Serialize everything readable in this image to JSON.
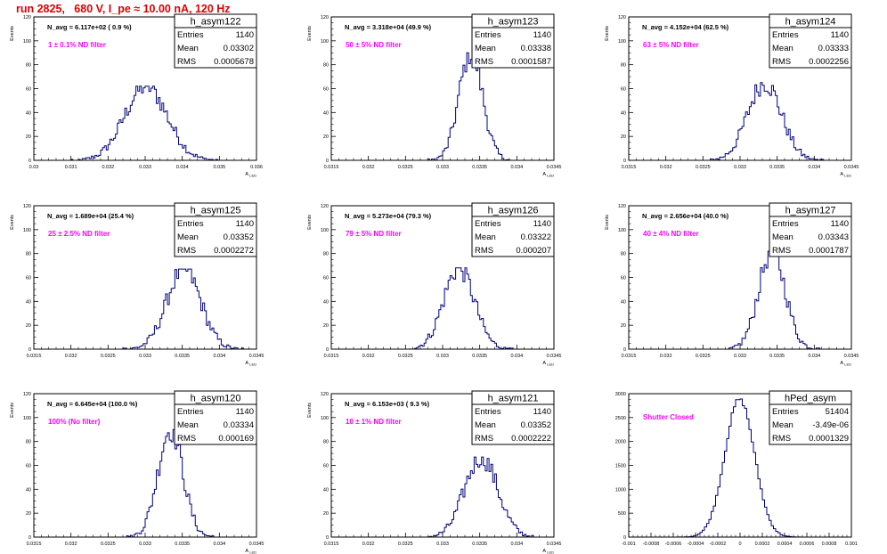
{
  "page_title": "run 2825,   680 V, I_pe ≈ 10.00 nA, 120 Hz",
  "colors": {
    "title": "#e00000",
    "histogram": "#000080",
    "annotation": "#ff00ff",
    "frame": "#000000"
  },
  "chart_data": [
    {
      "type": "histogram",
      "name": "h_asym122",
      "entries": "1140",
      "mean": "0.03302",
      "rms": "0.0005678",
      "navg": "N_avg = 6.117e+02 ( 0.9 %)",
      "note": "1 ± 0.1% ND filter",
      "xlabel": "A_LED",
      "ylabel": "Events",
      "xlim": [
        0.03,
        0.036
      ],
      "ylim": [
        0,
        120
      ],
      "xticks": [
        "0.03",
        "0.031",
        "0.032",
        "0.033",
        "0.034",
        "0.035",
        "0.036"
      ],
      "yticks": [
        "0",
        "20",
        "40",
        "60",
        "80",
        "100",
        "120"
      ],
      "mu": 0.03302,
      "sigma": 0.00057,
      "peak": 62,
      "binw": 5e-05
    },
    {
      "type": "histogram",
      "name": "h_asym123",
      "entries": "1140",
      "mean": "0.03338",
      "rms": "0.0001587",
      "navg": "N_avg = 3.318e+04 (49.9 %)",
      "note": "50 ± 5% ND filter",
      "xlabel": "A_LED",
      "ylabel": "Events",
      "xlim": [
        0.0315,
        0.0345
      ],
      "ylim": [
        0,
        120
      ],
      "xticks": [
        "0.0315",
        "0.032",
        "0.0325",
        "0.033",
        "0.0335",
        "0.034",
        "0.0345"
      ],
      "yticks": [
        "0",
        "20",
        "40",
        "60",
        "80",
        "100",
        "120"
      ],
      "mu": 0.03338,
      "sigma": 0.000159,
      "peak": 90,
      "binw": 2.5e-05
    },
    {
      "type": "histogram",
      "name": "h_asym124",
      "entries": "1140",
      "mean": "0.03333",
      "rms": "0.0002256",
      "navg": "N_avg = 4.152e+04 (62.5 %)",
      "note": "63 ± 5% ND filter",
      "xlabel": "A_LED",
      "ylabel": "Events",
      "xlim": [
        0.0315,
        0.0345
      ],
      "ylim": [
        0,
        120
      ],
      "xticks": [
        "0.0315",
        "0.032",
        "0.0325",
        "0.033",
        "0.0335",
        "0.034",
        "0.0345"
      ],
      "yticks": [
        "0",
        "20",
        "40",
        "60",
        "80",
        "100",
        "120"
      ],
      "mu": 0.03333,
      "sigma": 0.000226,
      "peak": 65,
      "binw": 2.5e-05
    },
    {
      "type": "histogram",
      "name": "h_asym125",
      "entries": "1140",
      "mean": "0.03352",
      "rms": "0.0002272",
      "navg": "N_avg = 1.689e+04 (25.4 %)",
      "note": "25 ± 2.5% ND filter",
      "xlabel": "A_LED",
      "ylabel": "Events",
      "xlim": [
        0.0315,
        0.0345
      ],
      "ylim": [
        0,
        120
      ],
      "xticks": [
        "0.0315",
        "0.032",
        "0.0325",
        "0.033",
        "0.0335",
        "0.034",
        "0.0345"
      ],
      "yticks": [
        "0",
        "20",
        "40",
        "60",
        "80",
        "100",
        "120"
      ],
      "mu": 0.03352,
      "sigma": 0.000227,
      "peak": 67,
      "binw": 2.5e-05
    },
    {
      "type": "histogram",
      "name": "h_asym126",
      "entries": "1140",
      "mean": "0.03322",
      "rms": "0.000207",
      "navg": "N_avg = 5.273e+04 (79.3 %)",
      "note": "79 ± 5% ND filter",
      "xlabel": "A_LED",
      "ylabel": "Events",
      "xlim": [
        0.0315,
        0.0345
      ],
      "ylim": [
        0,
        120
      ],
      "xticks": [
        "0.0315",
        "0.032",
        "0.0325",
        "0.033",
        "0.0335",
        "0.034",
        "0.0345"
      ],
      "yticks": [
        "0",
        "20",
        "40",
        "60",
        "80",
        "100",
        "120"
      ],
      "mu": 0.03322,
      "sigma": 0.000207,
      "peak": 68,
      "binw": 2.5e-05
    },
    {
      "type": "histogram",
      "name": "h_asym127",
      "entries": "1140",
      "mean": "0.03343",
      "rms": "0.0001787",
      "navg": "N_avg = 2.656e+04 (40.0 %)",
      "note": "40 ± 4% ND filter",
      "xlabel": "A_LED",
      "ylabel": "Events",
      "xlim": [
        0.0315,
        0.0345
      ],
      "ylim": [
        0,
        120
      ],
      "xticks": [
        "0.0315",
        "0.032",
        "0.0325",
        "0.033",
        "0.0335",
        "0.034",
        "0.0345"
      ],
      "yticks": [
        "0",
        "20",
        "40",
        "60",
        "80",
        "100",
        "120"
      ],
      "mu": 0.03343,
      "sigma": 0.000179,
      "peak": 82,
      "binw": 2.5e-05
    },
    {
      "type": "histogram",
      "name": "h_asym120",
      "entries": "1140",
      "mean": "0.03334",
      "rms": "0.000169",
      "navg": "N_avg = 6.645e+04 (100.0 %)",
      "note": "100% (No filter)",
      "xlabel": "A_LED",
      "ylabel": "Events",
      "xlim": [
        0.0315,
        0.0345
      ],
      "ylim": [
        0,
        120
      ],
      "xticks": [
        "0.0315",
        "0.032",
        "0.0325",
        "0.033",
        "0.0335",
        "0.034",
        "0.0345"
      ],
      "yticks": [
        "0",
        "20",
        "40",
        "60",
        "80",
        "100",
        "120"
      ],
      "mu": 0.03334,
      "sigma": 0.000169,
      "peak": 90,
      "binw": 2.5e-05
    },
    {
      "type": "histogram",
      "name": "h_asym121",
      "entries": "1140",
      "mean": "0.03352",
      "rms": "0.0002222",
      "navg": "N_avg = 6.153e+03 ( 9.3 %)",
      "note": "10 ± 1% ND filter",
      "xlabel": "A_LED",
      "ylabel": "Events",
      "xlim": [
        0.0315,
        0.0345
      ],
      "ylim": [
        0,
        120
      ],
      "xticks": [
        "0.0315",
        "0.032",
        "0.0325",
        "0.033",
        "0.0335",
        "0.034",
        "0.0345"
      ],
      "yticks": [
        "0",
        "20",
        "40",
        "60",
        "80",
        "100",
        "120"
      ],
      "mu": 0.03352,
      "sigma": 0.000222,
      "peak": 67,
      "binw": 2.5e-05
    },
    {
      "type": "histogram",
      "name": "hPed_asym",
      "entries": "51404",
      "mean": "-3.49e-06",
      "rms": "0.0001329",
      "navg": "",
      "note": "Shutter Closed",
      "xlabel": "",
      "ylabel": "",
      "xlim": [
        -0.001,
        0.001
      ],
      "ylim": [
        0,
        3200
      ],
      "xticks": [
        "-0.001",
        "-0.0008",
        "-0.0006",
        "-0.0004",
        "-0.0002",
        "0",
        "0.0002",
        "0.0004",
        "0.0006",
        "0.0008",
        "0.001"
      ],
      "yticks": [
        "0",
        "500",
        "1000",
        "1500",
        "2000",
        "2500",
        "3000"
      ],
      "mu": -3.5e-06,
      "sigma": 0.000133,
      "peak": 3080,
      "binw": 2e-05
    }
  ]
}
